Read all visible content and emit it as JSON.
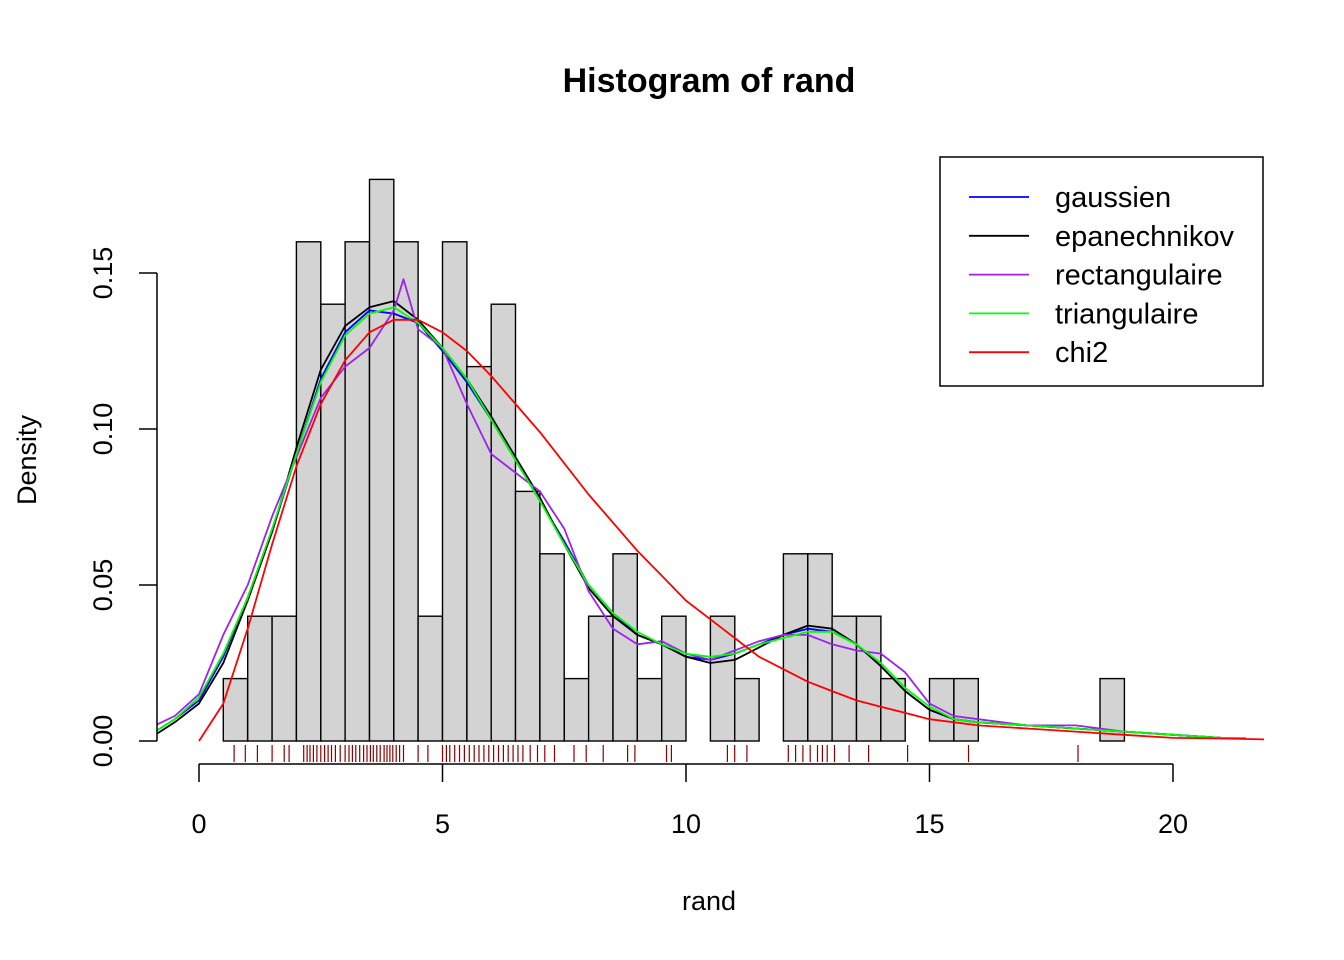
{
  "chart_data": {
    "type": "histogram",
    "title": "Histogram of rand",
    "xlabel": "rand",
    "ylabel": "Density",
    "xlim": [
      -0.9,
      21.9
    ],
    "ylim": [
      0,
      0.18
    ],
    "x_ticks": [
      0,
      5,
      10,
      15,
      20
    ],
    "x_tick_labels": [
      "0",
      "5",
      "10",
      "15",
      "20"
    ],
    "y_ticks": [
      0.0,
      0.05,
      0.1,
      0.15
    ],
    "y_tick_labels": [
      "0.00",
      "0.05",
      "0.10",
      "0.15"
    ],
    "grid": false,
    "legend_position": "top-right",
    "bins": {
      "start": 0.5,
      "width": 0.5,
      "densities": [
        0.02,
        0.04,
        0.04,
        0.16,
        0.14,
        0.16,
        0.18,
        0.16,
        0.04,
        0.16,
        0.12,
        0.14,
        0.08,
        0.06,
        0.02,
        0.04,
        0.06,
        0.02,
        0.04,
        0,
        0.04,
        0.02,
        0,
        0.06,
        0.06,
        0.04,
        0.04,
        0.02,
        0,
        0.02,
        0.02,
        0,
        0,
        0,
        0,
        0,
        0.02
      ],
      "fill": "#d3d3d3"
    },
    "rug": {
      "color": "#8b0000",
      "x": [
        0.72,
        0.95,
        1.2,
        1.5,
        1.75,
        1.85,
        2.15,
        2.22,
        2.28,
        2.35,
        2.42,
        2.5,
        2.58,
        2.65,
        2.72,
        2.8,
        2.9,
        3.0,
        3.08,
        3.15,
        3.22,
        3.3,
        3.38,
        3.45,
        3.52,
        3.58,
        3.65,
        3.72,
        3.8,
        3.86,
        3.92,
        3.98,
        4.05,
        4.12,
        4.2,
        4.5,
        4.7,
        5.0,
        5.08,
        5.15,
        5.25,
        5.35,
        5.45,
        5.55,
        5.65,
        5.75,
        5.85,
        5.95,
        6.05,
        6.15,
        6.25,
        6.35,
        6.45,
        6.55,
        6.65,
        6.8,
        6.95,
        7.1,
        7.3,
        7.7,
        7.95,
        8.3,
        8.8,
        8.95,
        9.6,
        9.7,
        10.85,
        11.0,
        11.25,
        12.1,
        12.25,
        12.4,
        12.55,
        12.7,
        12.8,
        12.9,
        13.05,
        13.35,
        13.75,
        14.55,
        15.8,
        18.05
      ]
    },
    "series": [
      {
        "name": "gaussien",
        "color": "#0000ff",
        "x": [
          -0.9,
          -0.5,
          0,
          0.5,
          1,
          1.5,
          2,
          2.5,
          3,
          3.5,
          4,
          4.5,
          5,
          5.5,
          6,
          6.5,
          7,
          7.5,
          8,
          8.5,
          9,
          9.5,
          10,
          10.5,
          11,
          11.5,
          12,
          12.5,
          13,
          13.5,
          14,
          14.5,
          15,
          15.5,
          16,
          17,
          18,
          19,
          20,
          21,
          21.5
        ],
        "y": [
          0.003,
          0.007,
          0.013,
          0.027,
          0.046,
          0.067,
          0.092,
          0.116,
          0.131,
          0.138,
          0.137,
          0.134,
          0.125,
          0.115,
          0.103,
          0.09,
          0.077,
          0.064,
          0.05,
          0.041,
          0.034,
          0.031,
          0.027,
          0.026,
          0.028,
          0.031,
          0.034,
          0.036,
          0.035,
          0.031,
          0.024,
          0.016,
          0.01,
          0.007,
          0.006,
          0.005,
          0.004,
          0.003,
          0.002,
          0.001,
          0.001
        ]
      },
      {
        "name": "epanechnikov",
        "color": "#000000",
        "x": [
          -0.9,
          -0.5,
          0,
          0.5,
          1,
          1.5,
          2,
          2.5,
          3,
          3.5,
          4,
          4.5,
          5,
          5.5,
          6,
          6.5,
          7,
          7.5,
          8,
          8.5,
          9,
          9.5,
          10,
          10.5,
          11,
          11.5,
          12,
          12.5,
          13,
          13.5,
          14,
          14.5,
          15,
          15.5,
          16,
          17,
          18,
          19,
          20,
          21,
          21.5
        ],
        "y": [
          0.002,
          0.006,
          0.012,
          0.025,
          0.045,
          0.067,
          0.094,
          0.119,
          0.133,
          0.139,
          0.141,
          0.135,
          0.126,
          0.116,
          0.104,
          0.091,
          0.078,
          0.063,
          0.049,
          0.04,
          0.034,
          0.031,
          0.027,
          0.025,
          0.026,
          0.03,
          0.034,
          0.037,
          0.036,
          0.031,
          0.024,
          0.016,
          0.01,
          0.007,
          0.006,
          0.005,
          0.004,
          0.003,
          0.002,
          0.001,
          0.001
        ]
      },
      {
        "name": "rectangulaire",
        "color": "#a020f0",
        "x": [
          -0.9,
          -0.5,
          0,
          0.5,
          1,
          1.5,
          2,
          2.5,
          3,
          3.5,
          4,
          4.2,
          4.5,
          5,
          5.5,
          6,
          6.5,
          7,
          7.5,
          8,
          8.5,
          9,
          9.5,
          10,
          10.5,
          11,
          11.5,
          12,
          12.5,
          13,
          13.5,
          14,
          14.5,
          15,
          15.5,
          16,
          17,
          18,
          19,
          20,
          21,
          21.5
        ],
        "y": [
          0.005,
          0.008,
          0.015,
          0.034,
          0.05,
          0.072,
          0.091,
          0.11,
          0.12,
          0.126,
          0.138,
          0.148,
          0.132,
          0.126,
          0.108,
          0.092,
          0.086,
          0.08,
          0.068,
          0.048,
          0.036,
          0.031,
          0.032,
          0.028,
          0.026,
          0.029,
          0.032,
          0.034,
          0.034,
          0.031,
          0.029,
          0.028,
          0.022,
          0.012,
          0.008,
          0.007,
          0.005,
          0.005,
          0.003,
          0.002,
          0.001,
          0.001
        ]
      },
      {
        "name": "triangulaire",
        "color": "#00ff00",
        "x": [
          -0.9,
          -0.5,
          0,
          0.5,
          1,
          1.5,
          2,
          2.5,
          3,
          3.5,
          4,
          4.5,
          5,
          5.5,
          6,
          6.5,
          7,
          7.5,
          8,
          8.5,
          9,
          9.5,
          10,
          10.5,
          11,
          11.5,
          12,
          12.5,
          13,
          13.5,
          14,
          14.5,
          15,
          15.5,
          16,
          17,
          18,
          19,
          20,
          21,
          21.5
        ],
        "y": [
          0.003,
          0.007,
          0.014,
          0.028,
          0.046,
          0.068,
          0.092,
          0.115,
          0.13,
          0.137,
          0.139,
          0.134,
          0.126,
          0.116,
          0.103,
          0.09,
          0.077,
          0.063,
          0.05,
          0.041,
          0.035,
          0.031,
          0.028,
          0.027,
          0.028,
          0.031,
          0.033,
          0.035,
          0.035,
          0.031,
          0.025,
          0.017,
          0.011,
          0.007,
          0.006,
          0.005,
          0.004,
          0.003,
          0.002,
          0.001,
          0.001
        ]
      },
      {
        "name": "chi2",
        "color": "#ff0000",
        "x": [
          0,
          0.5,
          1,
          1.5,
          2,
          2.5,
          3,
          3.5,
          4,
          4.5,
          5,
          5.5,
          6,
          6.5,
          7,
          7.5,
          8,
          8.5,
          9,
          9.5,
          10,
          10.5,
          11,
          11.5,
          12,
          12.5,
          13,
          13.5,
          14,
          14.5,
          15,
          16,
          17,
          18,
          19,
          20,
          21,
          21.9
        ],
        "y": [
          0.0,
          0.012,
          0.036,
          0.063,
          0.088,
          0.108,
          0.122,
          0.131,
          0.135,
          0.135,
          0.131,
          0.125,
          0.117,
          0.108,
          0.099,
          0.089,
          0.079,
          0.07,
          0.061,
          0.053,
          0.045,
          0.039,
          0.033,
          0.027,
          0.023,
          0.019,
          0.016,
          0.013,
          0.011,
          0.009,
          0.007,
          0.005,
          0.004,
          0.003,
          0.002,
          0.001,
          0.0008,
          0.0005
        ]
      }
    ]
  }
}
